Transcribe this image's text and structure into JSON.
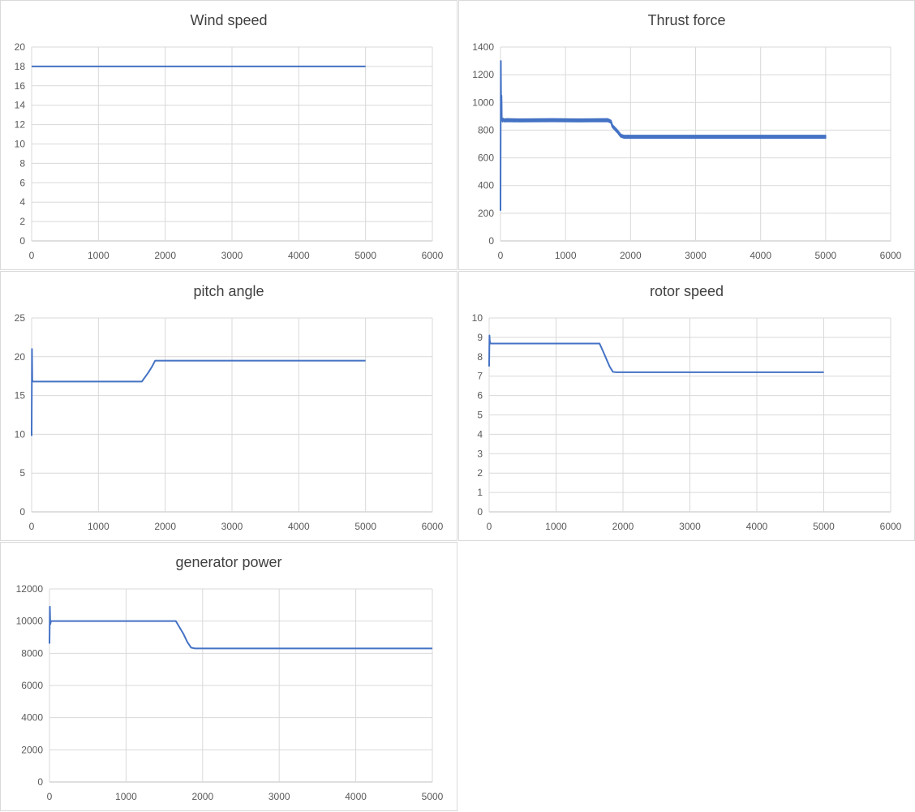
{
  "chart_data": [
    {
      "type": "line",
      "title": "Wind speed",
      "xlim": [
        0,
        6000
      ],
      "ylim": [
        0,
        20
      ],
      "xticks": [
        0,
        1000,
        2000,
        3000,
        4000,
        5000,
        6000
      ],
      "yticks": [
        0,
        2,
        4,
        6,
        8,
        10,
        12,
        14,
        16,
        18,
        20
      ],
      "grid": "vertical+horizontal",
      "color": "#4472c4",
      "series": [
        {
          "x": [
            0,
            5000
          ],
          "y": [
            18,
            18
          ]
        }
      ]
    },
    {
      "type": "line",
      "title": "Thrust force",
      "xlim": [
        0,
        6000
      ],
      "ylim": [
        0,
        1400
      ],
      "xticks": [
        0,
        1000,
        2000,
        3000,
        4000,
        5000,
        6000
      ],
      "yticks": [
        0,
        200,
        400,
        600,
        800,
        1000,
        1200,
        1400
      ],
      "grid": "vertical+horizontal",
      "color": "#4472c4",
      "series": [
        {
          "x": [
            0,
            5,
            10,
            15,
            20,
            30,
            40,
            60,
            100,
            300,
            800,
            1200,
            1650,
            1700,
            1720,
            1760,
            1800,
            1850,
            1900,
            2500,
            3500,
            4500,
            5000
          ],
          "y": [
            220,
            1300,
            950,
            1050,
            880,
            870,
            875,
            870,
            872,
            870,
            872,
            870,
            872,
            860,
            830,
            810,
            790,
            760,
            752,
            752,
            752,
            752,
            752
          ],
          "band": [
            0,
            0,
            0,
            0,
            20,
            20,
            20,
            20,
            20,
            20,
            20,
            20,
            20,
            20,
            20,
            20,
            20,
            20,
            20,
            20,
            20,
            20,
            20
          ]
        }
      ]
    },
    {
      "type": "line",
      "title": "pitch angle",
      "xlim": [
        0,
        6000
      ],
      "ylim": [
        0,
        25
      ],
      "xticks": [
        0,
        1000,
        2000,
        3000,
        4000,
        5000,
        6000
      ],
      "yticks": [
        0,
        5,
        10,
        15,
        20,
        25
      ],
      "grid": "vertical+horizontal",
      "color": "#4472c4",
      "series": [
        {
          "x": [
            0,
            5,
            10,
            15,
            20,
            40,
            100,
            1000,
            1650,
            1700,
            1750,
            1800,
            1850,
            1900,
            2500,
            4000,
            5000
          ],
          "y": [
            9.8,
            21,
            17,
            16.8,
            16.8,
            16.8,
            16.8,
            16.8,
            16.8,
            17.4,
            18.0,
            18.7,
            19.5,
            19.5,
            19.5,
            19.5,
            19.5
          ]
        }
      ]
    },
    {
      "type": "line",
      "title": "rotor speed",
      "xlim": [
        0,
        6000
      ],
      "ylim": [
        0,
        10
      ],
      "xticks": [
        0,
        1000,
        2000,
        3000,
        4000,
        5000,
        6000
      ],
      "yticks": [
        0,
        1,
        2,
        3,
        4,
        5,
        6,
        7,
        8,
        9,
        10
      ],
      "grid": "vertical+horizontal",
      "color": "#4472c4",
      "series": [
        {
          "x": [
            0,
            5,
            10,
            20,
            40,
            100,
            1000,
            1650,
            1700,
            1750,
            1800,
            1850,
            1900,
            2500,
            4000,
            5000
          ],
          "y": [
            7.5,
            9.1,
            8.8,
            8.68,
            8.68,
            8.68,
            8.68,
            8.68,
            8.3,
            7.9,
            7.5,
            7.22,
            7.2,
            7.2,
            7.2,
            7.2
          ]
        }
      ]
    },
    {
      "type": "line",
      "title": "generator power",
      "xlim": [
        0,
        5000
      ],
      "ylim": [
        0,
        12000
      ],
      "xticks": [
        0,
        1000,
        2000,
        3000,
        4000,
        5000
      ],
      "yticks": [
        0,
        2000,
        4000,
        6000,
        8000,
        10000,
        12000
      ],
      "grid": "vertical+horizontal",
      "color": "#4472c4",
      "series": [
        {
          "x": [
            0,
            5,
            10,
            20,
            40,
            100,
            1000,
            1650,
            1700,
            1750,
            1800,
            1850,
            1900,
            2500,
            4000,
            5000
          ],
          "y": [
            8600,
            10900,
            9800,
            10000,
            10000,
            10000,
            10000,
            10000,
            9600,
            9200,
            8700,
            8350,
            8300,
            8300,
            8300,
            8300
          ]
        }
      ]
    }
  ]
}
